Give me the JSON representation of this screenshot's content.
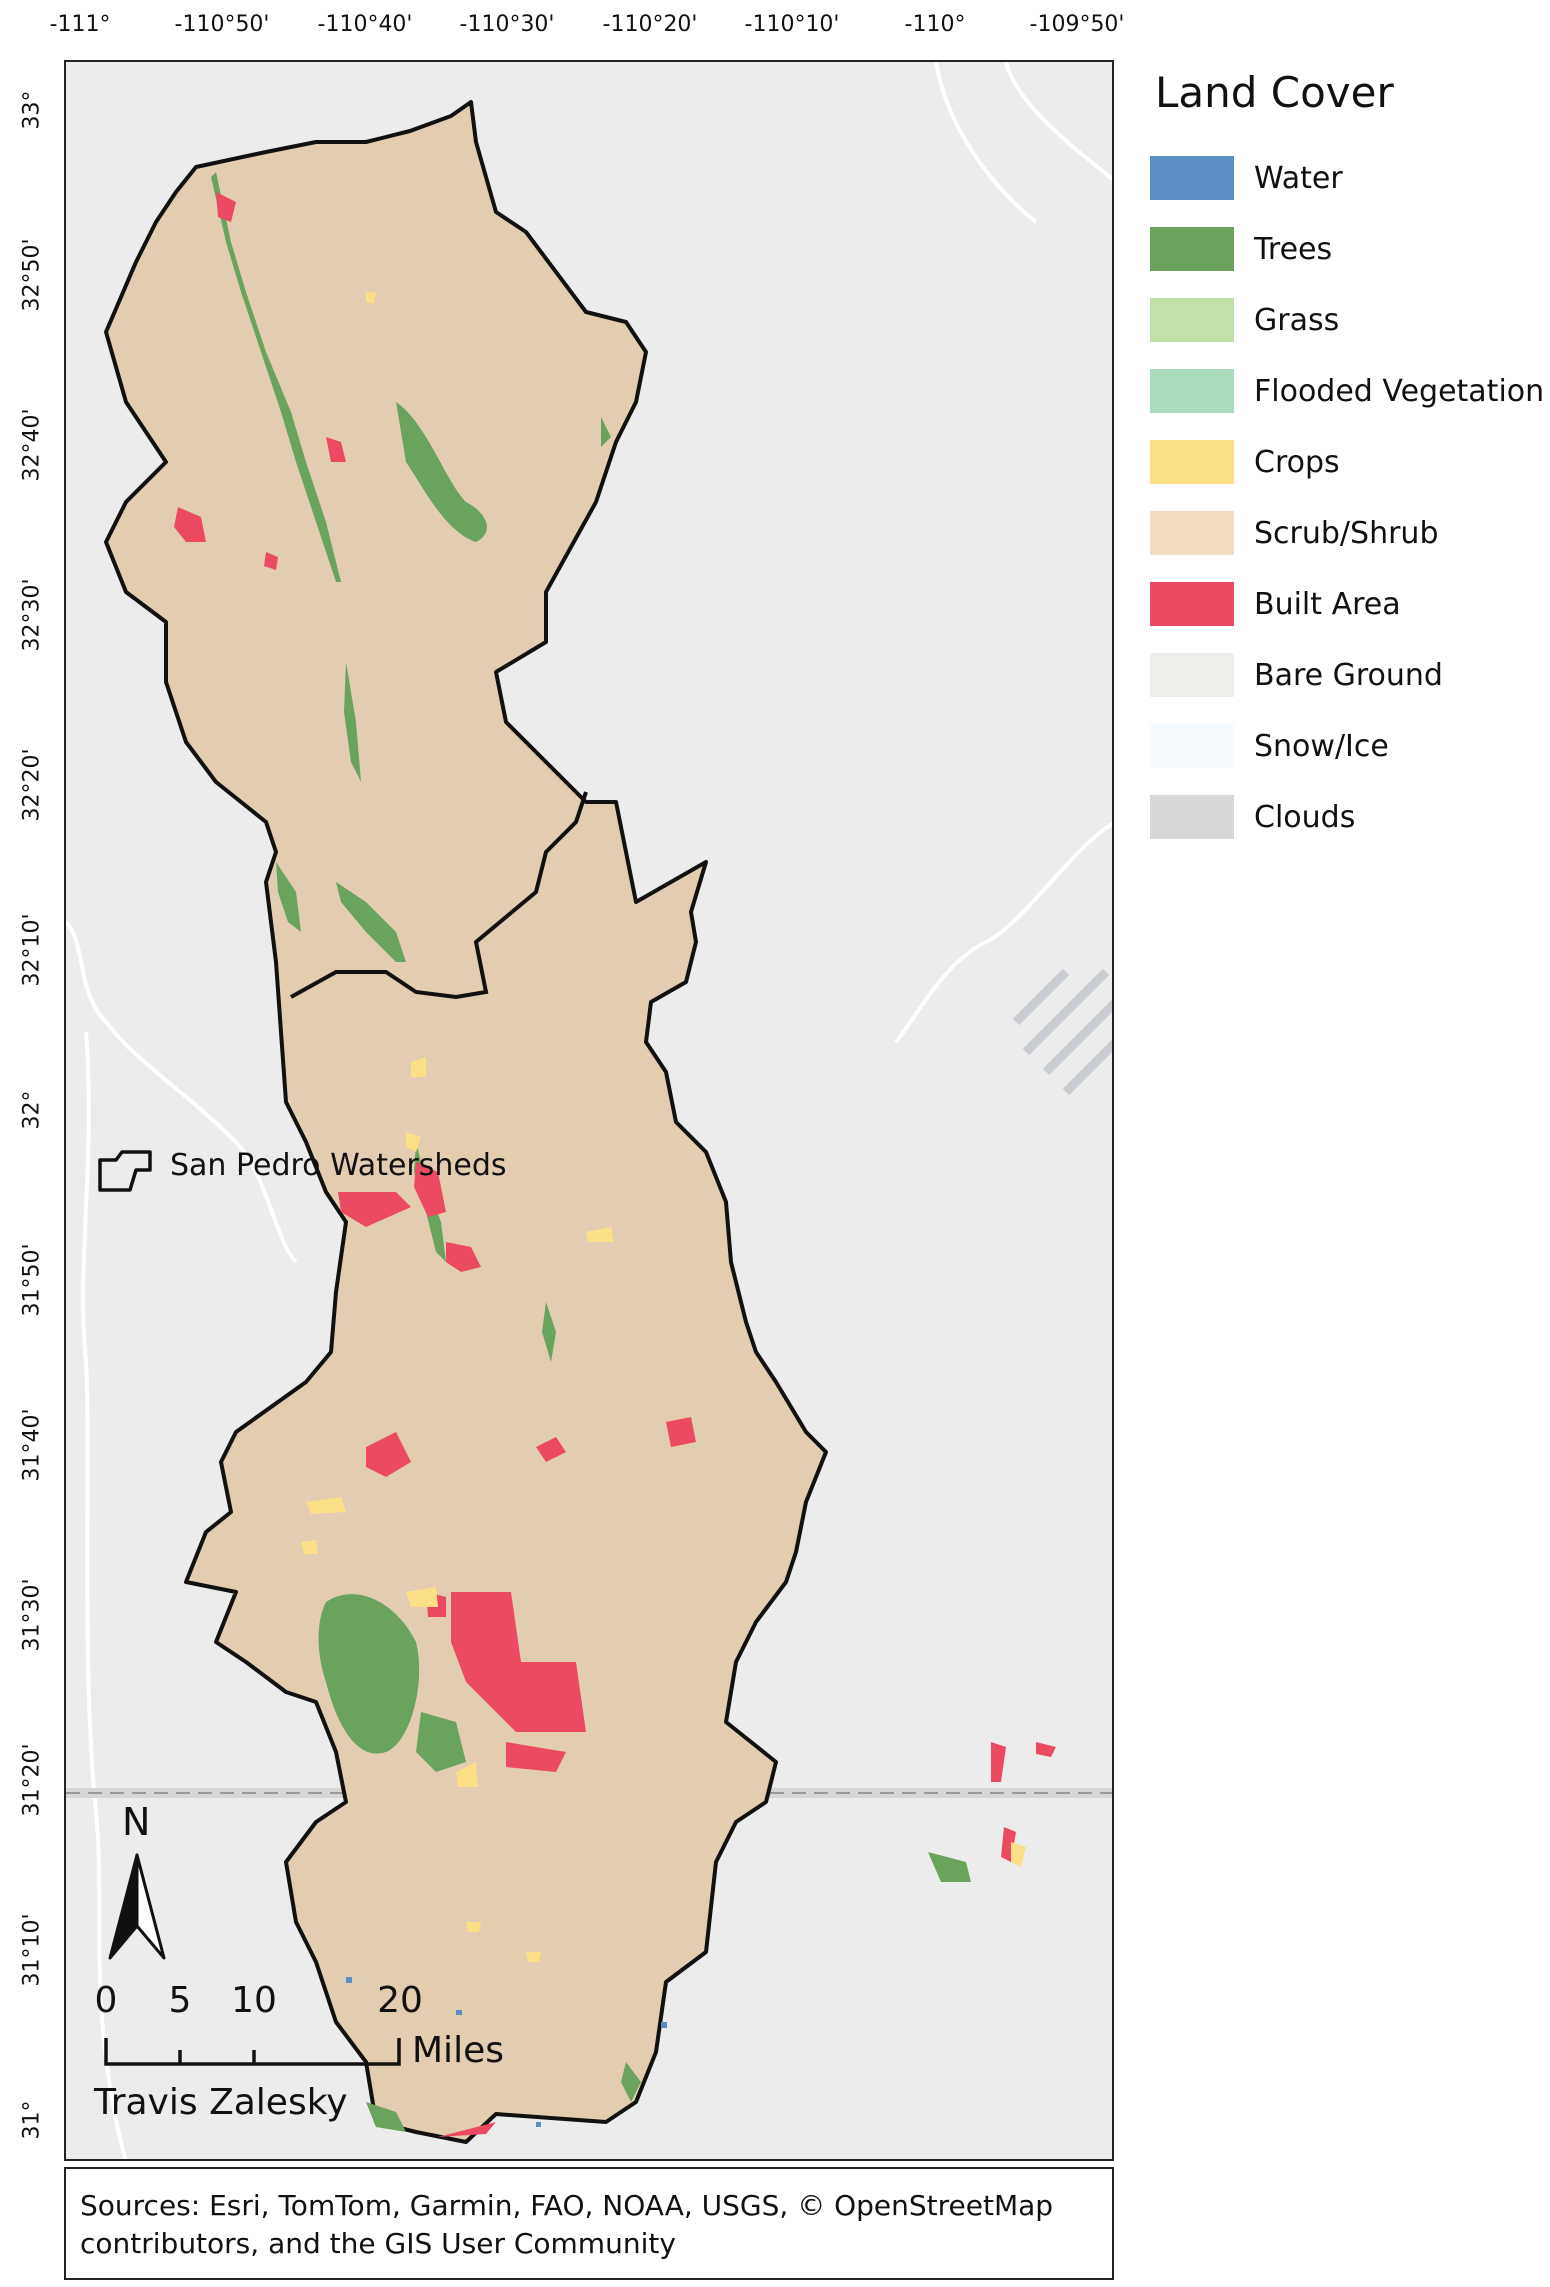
{
  "graticule": {
    "longitude_labels": [
      "-111°",
      "-110°50'",
      "-110°40'",
      "-110°30'",
      "-110°20'",
      "-110°10'",
      "-110°",
      "-109°50'"
    ],
    "latitude_labels": [
      "33°",
      "32°50'",
      "32°40'",
      "32°30'",
      "32°20'",
      "32°10'",
      "32°",
      "31°50'",
      "31°40'",
      "31°30'",
      "31°20'",
      "31°10'",
      "31°"
    ]
  },
  "legend": {
    "title": "Land Cover",
    "items": [
      {
        "label": "Water",
        "color": "#5b8ec5"
      },
      {
        "label": "Trees",
        "color": "#6aa35c"
      },
      {
        "label": "Grass",
        "color": "#c3e0a6"
      },
      {
        "label": "Flooded Vegetation",
        "color": "#a8dcbc"
      },
      {
        "label": "Crops",
        "color": "#fbe087"
      },
      {
        "label": "Scrub/Shrub",
        "color": "#f0dcc2"
      },
      {
        "label": "Built Area",
        "color": "#ec4a62"
      },
      {
        "label": "Bare Ground",
        "color": "#efeeeb"
      },
      {
        "label": "Snow/Ice",
        "color": "#f5fbff"
      },
      {
        "label": "Clouds",
        "color": "#d8d8d8"
      }
    ]
  },
  "watershed_label": "San Pedro Watersheds",
  "north_label": "N",
  "scale_bar": {
    "ticks": [
      "0",
      "5",
      "10",
      "20"
    ],
    "units": "Miles"
  },
  "author": "Travis Zalesky",
  "sources": "Sources: Esri, TomTom, Garmin, FAO, NOAA, USGS, © OpenStreetMap contributors, and the GIS User Community",
  "colors": {
    "terrain": "#e2cdb1",
    "basemap": "#ececec",
    "outline": "#111111"
  }
}
